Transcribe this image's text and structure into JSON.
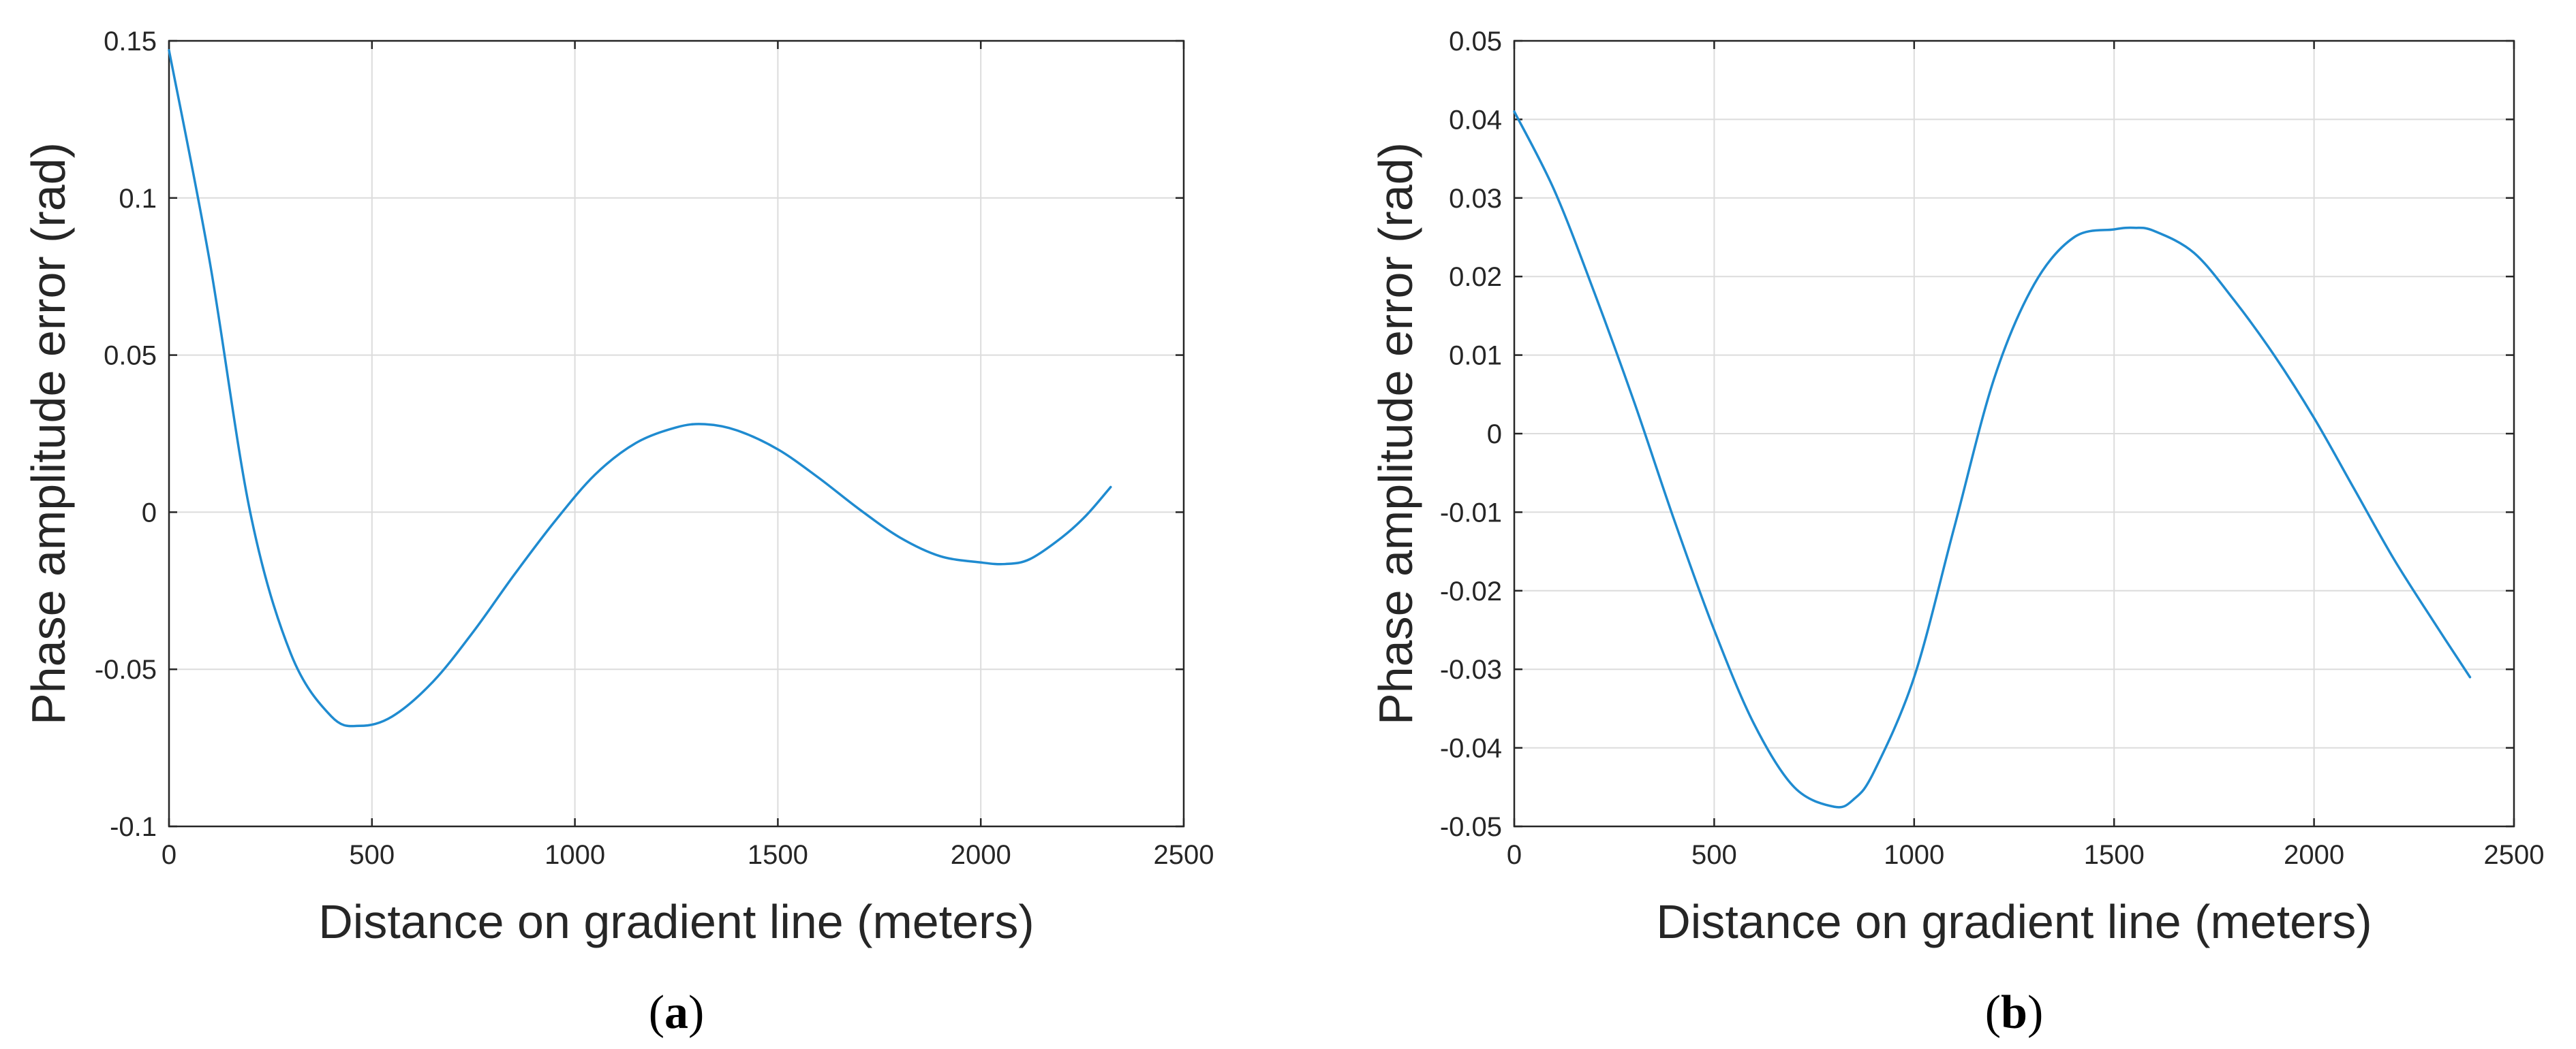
{
  "chart_data": [
    {
      "type": "line",
      "panel_label": "a",
      "title": "",
      "xlabel": "Distance on gradient line (meters)",
      "ylabel": "Phase amplitude error (rad)",
      "xlim": [
        0,
        2500
      ],
      "ylim": [
        -0.1,
        0.15
      ],
      "xticks": [
        0,
        500,
        1000,
        1500,
        2000,
        2500
      ],
      "xtick_labels": [
        "0",
        "500",
        "1000",
        "1500",
        "2000",
        "2500"
      ],
      "yticks": [
        -0.1,
        -0.05,
        0,
        0.05,
        0.1,
        0.15
      ],
      "ytick_labels": [
        "-0.1",
        "-0.05",
        "0",
        "0.05",
        "0.1",
        "0.15"
      ],
      "grid": true,
      "series": [
        {
          "name": "phase amplitude error",
          "color": "#1f8bd0",
          "x": [
            0,
            100,
            200,
            300,
            400,
            470,
            550,
            650,
            750,
            850,
            950,
            1050,
            1150,
            1250,
            1320,
            1400,
            1500,
            1600,
            1700,
            1800,
            1900,
            2000,
            2060,
            2120,
            2200,
            2260,
            2320
          ],
          "y": [
            0.147,
            0.08,
            0.0,
            -0.045,
            -0.065,
            -0.068,
            -0.065,
            -0.054,
            -0.038,
            -0.02,
            -0.003,
            0.012,
            0.022,
            0.027,
            0.028,
            0.026,
            0.02,
            0.011,
            0.001,
            -0.008,
            -0.014,
            -0.016,
            -0.0165,
            -0.015,
            -0.008,
            -0.001,
            0.008
          ]
        }
      ]
    },
    {
      "type": "line",
      "panel_label": "b",
      "title": "",
      "xlabel": "Distance on gradient line (meters)",
      "ylabel": "Phase amplitude error (rad)",
      "xlim": [
        0,
        2500
      ],
      "ylim": [
        -0.05,
        0.05
      ],
      "xticks": [
        0,
        500,
        1000,
        1500,
        2000,
        2500
      ],
      "xtick_labels": [
        "0",
        "500",
        "1000",
        "1500",
        "2000",
        "2500"
      ],
      "yticks": [
        -0.05,
        -0.04,
        -0.03,
        -0.02,
        -0.01,
        0,
        0.01,
        0.02,
        0.03,
        0.04,
        0.05
      ],
      "ytick_labels": [
        "-0.05",
        "-0.04",
        "-0.03",
        "-0.02",
        "-0.01",
        "0",
        "0.01",
        "0.02",
        "0.03",
        "0.04",
        "0.05"
      ],
      "grid": true,
      "series": [
        {
          "name": "phase amplitude error",
          "color": "#1f8bd0",
          "x": [
            0,
            100,
            200,
            300,
            400,
            500,
            600,
            700,
            800,
            850,
            900,
            1000,
            1100,
            1200,
            1300,
            1400,
            1500,
            1550,
            1600,
            1700,
            1800,
            1900,
            2000,
            2100,
            2200,
            2300,
            2390
          ],
          "y": [
            0.041,
            0.031,
            0.018,
            0.004,
            -0.011,
            -0.025,
            -0.037,
            -0.045,
            -0.0475,
            -0.0465,
            -0.043,
            -0.031,
            -0.012,
            0.007,
            0.019,
            0.025,
            0.026,
            0.0262,
            0.0258,
            0.023,
            0.017,
            0.01,
            0.002,
            -0.007,
            -0.016,
            -0.024,
            -0.031
          ]
        }
      ]
    }
  ]
}
